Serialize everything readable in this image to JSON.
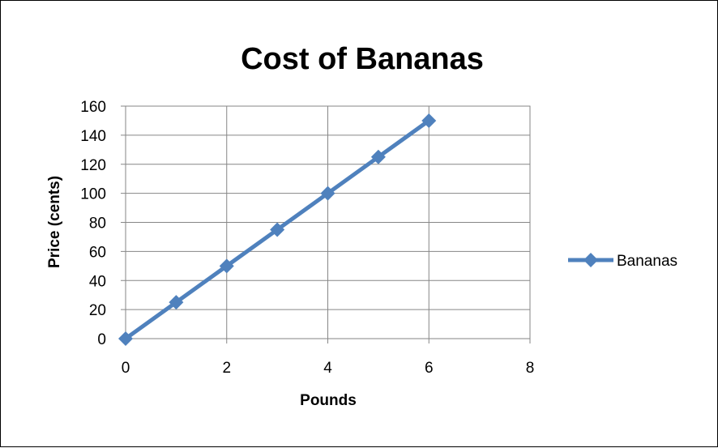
{
  "chart_data": {
    "type": "line",
    "title": "Cost of Bananas",
    "xlabel": "Pounds",
    "ylabel": "Price (cents)",
    "xlim": [
      0,
      8
    ],
    "ylim": [
      0,
      160
    ],
    "x_ticks": [
      0,
      2,
      4,
      6,
      8
    ],
    "y_ticks": [
      0,
      20,
      40,
      60,
      80,
      100,
      120,
      140,
      160
    ],
    "grid": true,
    "legend_position": "right",
    "series": [
      {
        "name": "Bananas",
        "color": "#4F81BD",
        "marker": "diamond",
        "x": [
          0,
          1,
          2,
          3,
          4,
          5,
          6
        ],
        "y": [
          0,
          25,
          50,
          75,
          100,
          125,
          150
        ]
      }
    ]
  }
}
